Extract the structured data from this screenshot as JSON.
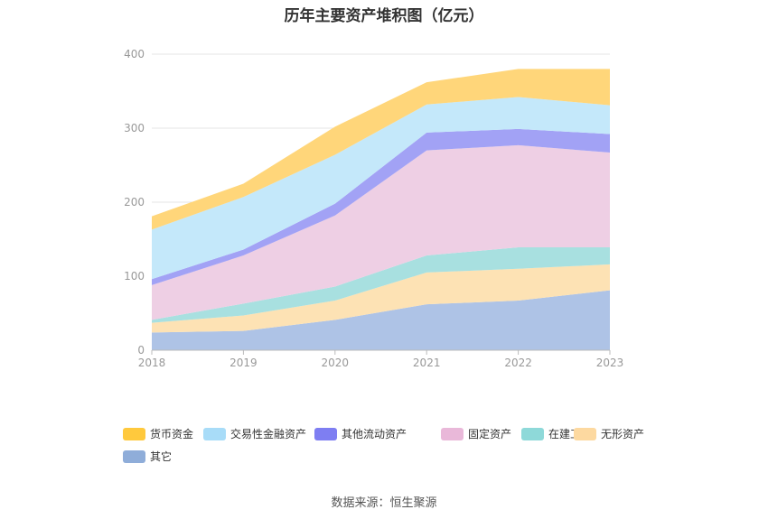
{
  "chart_data": {
    "type": "area",
    "stacked": true,
    "title": "历年主要资产堆积图（亿元）",
    "x": [
      "2018",
      "2019",
      "2020",
      "2021",
      "2022",
      "2023"
    ],
    "ylim": [
      0,
      400
    ],
    "yticks": [
      "0",
      "100",
      "200",
      "300",
      "400"
    ],
    "grid": true,
    "legend_position": "bottom",
    "series": [
      {
        "name": "其它",
        "color": "#aec3e6",
        "values": [
          24,
          26,
          41,
          62,
          67,
          81
        ]
      },
      {
        "name": "无形资产",
        "color": "#fde2b4",
        "values": [
          13,
          21,
          26,
          43,
          43,
          35
        ]
      },
      {
        "name": "在建工程",
        "color": "#a8e0e0",
        "values": [
          4,
          16,
          19,
          23,
          29,
          23
        ]
      },
      {
        "name": "固定资产",
        "color": "#eecfe4",
        "values": [
          47,
          65,
          96,
          142,
          138,
          128
        ]
      },
      {
        "name": "其他流动资产",
        "color": "#a2a2f5",
        "values": [
          8,
          8,
          16,
          24,
          22,
          25
        ]
      },
      {
        "name": "交易性金融资产",
        "color": "#c4e8fa",
        "values": [
          67,
          71,
          66,
          38,
          43,
          39
        ]
      },
      {
        "name": "货币资金",
        "color": "#ffd67a",
        "values": [
          18,
          18,
          38,
          30,
          38,
          49
        ]
      }
    ],
    "legend_order": [
      6,
      5,
      4,
      3,
      2,
      1,
      0
    ],
    "legend_colors": [
      "#ffc93d",
      "#a8dcf8",
      "#7e7ef2",
      "#e9b8d9",
      "#8ed9d9",
      "#fdd9a0",
      "#8fadd9"
    ]
  },
  "source": "数据来源：恒生聚源"
}
